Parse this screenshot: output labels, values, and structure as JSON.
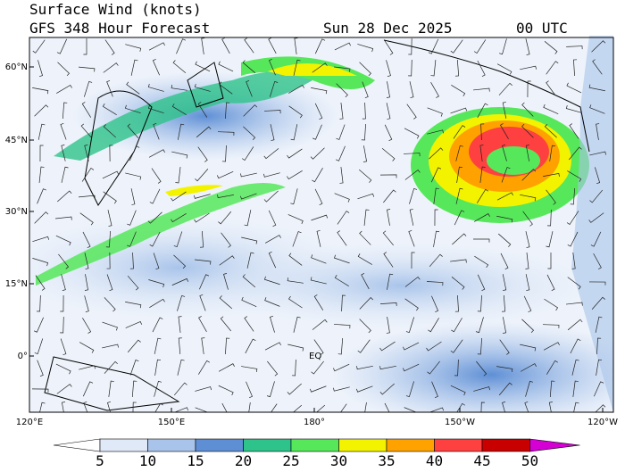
{
  "header": {
    "title": "Surface Wind (knots)",
    "subtitle": "GFS 348 Hour Forecast",
    "date": "Sun 28 Dec 2025",
    "time": "00 UTC"
  },
  "map": {
    "lat_labels": [
      "60°N",
      "45°N",
      "30°N",
      "15°N",
      "0°"
    ],
    "lon_labels": [
      "120°E",
      "150°E",
      "180°",
      "150°W",
      "120°W"
    ],
    "annotation": "EQ"
  },
  "colorbar": {
    "levels": [
      5,
      10,
      15,
      20,
      25,
      30,
      35,
      40,
      45,
      50
    ],
    "colors": [
      "#ffffff",
      "#dfe9f7",
      "#a9c4ea",
      "#5e8fd5",
      "#2ec38a",
      "#56e85a",
      "#f3f300",
      "#ffa200",
      "#ff4040",
      "#c80000",
      "#d400d4"
    ]
  }
}
